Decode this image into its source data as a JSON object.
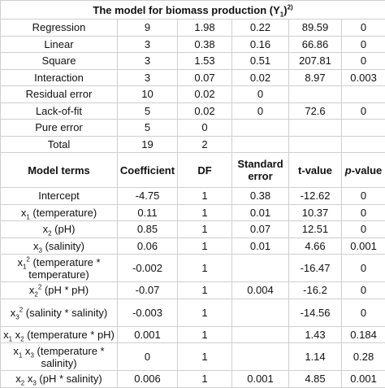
{
  "title": [
    {
      "t": "The model for biomass production (Y"
    },
    {
      "sub": "1"
    },
    {
      "t": ")"
    },
    {
      "sup": "2)"
    }
  ],
  "anova": [
    {
      "source": "Regression",
      "values": [
        9,
        1.98,
        0.22,
        89.59,
        0
      ]
    },
    {
      "source": "Linear",
      "values": [
        3,
        0.38,
        0.16,
        66.86,
        0
      ]
    },
    {
      "source": "Square",
      "values": [
        3,
        1.53,
        0.51,
        207.81,
        0
      ]
    },
    {
      "source": "Interaction",
      "values": [
        3,
        0.07,
        0.02,
        8.97,
        0.003
      ]
    },
    {
      "source": "Residual error",
      "values": [
        10,
        0.02,
        0,
        null,
        null
      ]
    },
    {
      "source": "Lack-of-fit",
      "values": [
        5,
        0.02,
        0,
        72.6,
        0
      ]
    },
    {
      "source": "Pure error",
      "values": [
        5,
        0,
        null,
        null,
        null
      ]
    },
    {
      "source": "Total",
      "values": [
        19,
        2,
        null,
        null,
        null
      ]
    }
  ],
  "header": [
    "Model terms",
    "Coefficient",
    "DF",
    "Standard error",
    "t-value",
    [
      {
        "i": "p"
      },
      {
        "t": "-value"
      }
    ]
  ],
  "terms": [
    {
      "label": [
        {
          "t": "Intercept"
        }
      ],
      "values": [
        -4.75,
        1,
        0.38,
        -12.62,
        0
      ]
    },
    {
      "label": [
        {
          "t": "x"
        },
        {
          "sub": "1"
        },
        {
          "t": " (temperature)"
        }
      ],
      "values": [
        0.11,
        1,
        0.01,
        10.37,
        0
      ]
    },
    {
      "label": [
        {
          "t": "x"
        },
        {
          "sub": "2"
        },
        {
          "t": " (pH)"
        }
      ],
      "values": [
        0.85,
        1,
        0.07,
        12.51,
        0
      ]
    },
    {
      "label": [
        {
          "t": "x"
        },
        {
          "sub": "3"
        },
        {
          "t": " (salinity)"
        }
      ],
      "values": [
        0.06,
        1,
        0.01,
        4.66,
        0.001
      ]
    },
    {
      "label": [
        {
          "t": "x"
        },
        {
          "sub": "1"
        },
        {
          "sup": "2"
        },
        {
          "t": " (temperature * temperature)"
        }
      ],
      "values": [
        -0.002,
        1,
        null,
        -16.47,
        0
      ]
    },
    {
      "label": [
        {
          "t": "x"
        },
        {
          "sub": "2"
        },
        {
          "sup": "2"
        },
        {
          "t": " (pH * pH)"
        }
      ],
      "values": [
        -0.07,
        1,
        0.004,
        -16.2,
        0
      ]
    },
    {
      "label": [
        {
          "t": "x"
        },
        {
          "sub": "3"
        },
        {
          "sup": "2"
        },
        {
          "t": " (salinity * salinity)"
        }
      ],
      "values": [
        -0.003,
        1,
        null,
        -14.56,
        0
      ]
    },
    {
      "label": [
        {
          "t": "x"
        },
        {
          "sub": "1"
        },
        {
          "t": " x"
        },
        {
          "sub": "2"
        },
        {
          "t": " (temperature * pH)"
        }
      ],
      "values": [
        0.001,
        1,
        null,
        1.43,
        0.184
      ]
    },
    {
      "label": [
        {
          "t": "x"
        },
        {
          "sub": "1"
        },
        {
          "t": " x"
        },
        {
          "sub": "3"
        },
        {
          "t": " (temperature * salinity)"
        }
      ],
      "values": [
        0,
        1,
        null,
        1.14,
        0.28
      ]
    },
    {
      "label": [
        {
          "t": "x"
        },
        {
          "sub": "2"
        },
        {
          "t": " x"
        },
        {
          "sub": "3"
        },
        {
          "t": " (pH * salinity)"
        }
      ],
      "values": [
        0.006,
        1,
        0.001,
        4.85,
        0.001
      ]
    }
  ]
}
